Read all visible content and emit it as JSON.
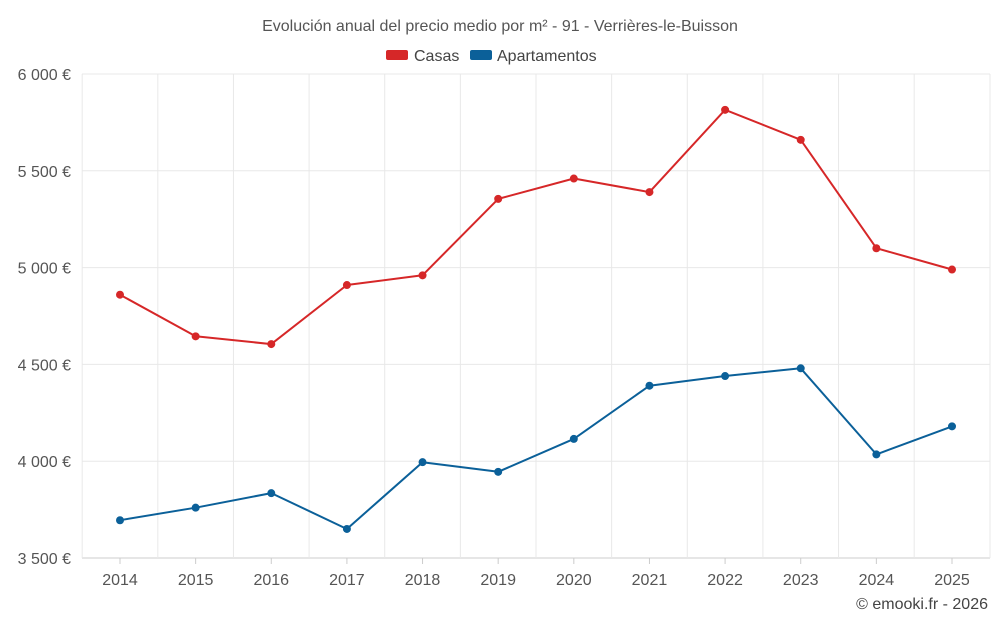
{
  "chart_data": {
    "type": "line",
    "title": "Evolución anual del precio medio por m² - 91 - Verrières-le-Buisson",
    "categories": [
      "2014",
      "2015",
      "2016",
      "2017",
      "2018",
      "2019",
      "2020",
      "2021",
      "2022",
      "2023",
      "2024",
      "2025"
    ],
    "series": [
      {
        "name": "Casas",
        "color": "#d62728",
        "values": [
          4860,
          4645,
          4605,
          4910,
          4960,
          5355,
          5460,
          5390,
          5815,
          5660,
          5100,
          4990
        ]
      },
      {
        "name": "Apartamentos",
        "color": "#0b6099",
        "values": [
          3695,
          3760,
          3835,
          3650,
          3995,
          3945,
          4115,
          4390,
          4440,
          4480,
          4035,
          4180
        ]
      }
    ],
    "ylim": [
      3500,
      6000
    ],
    "yticks": [
      3500,
      4000,
      4500,
      5000,
      5500,
      6000
    ],
    "ytick_labels": [
      "3 500 €",
      "4 000 €",
      "4 500 €",
      "5 000 €",
      "5 500 €",
      "6 000 €"
    ],
    "xlabel": "",
    "ylabel": "",
    "grid": true,
    "legend_position": "top-center"
  },
  "credit": "© emooki.fr - 2026"
}
